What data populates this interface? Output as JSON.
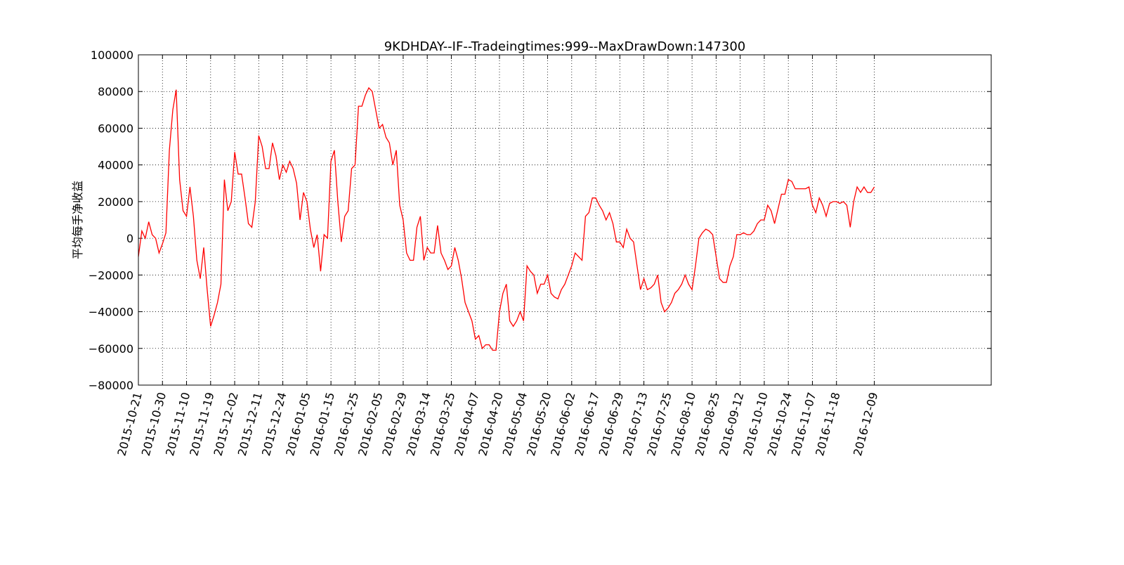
{
  "chart_data": {
    "type": "line",
    "title": "9KDHDAY--IF--Tradeingtimes:999--MaxDrawDown:147300",
    "ylabel": "平均每手净收益",
    "color": "#ff0000",
    "grid": true,
    "xlim": [
      0,
      248
    ],
    "ylim": [
      -80000,
      100000
    ],
    "yticks": [
      {
        "value": -80000,
        "label": "−80000"
      },
      {
        "value": -60000,
        "label": "−60000"
      },
      {
        "value": -40000,
        "label": "−40000"
      },
      {
        "value": -20000,
        "label": "−20000"
      },
      0,
      20000,
      40000,
      60000,
      80000,
      100000
    ],
    "xticks": [
      {
        "value": 0,
        "label": "2015-10-21"
      },
      {
        "value": 7,
        "label": "2015-10-30"
      },
      {
        "value": 14,
        "label": "2015-11-10"
      },
      {
        "value": 21,
        "label": "2015-11-19"
      },
      {
        "value": 28,
        "label": "2015-12-02"
      },
      {
        "value": 35,
        "label": "2015-12-11"
      },
      {
        "value": 42,
        "label": "2015-12-24"
      },
      {
        "value": 49,
        "label": "2016-01-05"
      },
      {
        "value": 56,
        "label": "2016-01-15"
      },
      {
        "value": 63,
        "label": "2016-01-25"
      },
      {
        "value": 70,
        "label": "2016-02-05"
      },
      {
        "value": 77,
        "label": "2016-02-29"
      },
      {
        "value": 84,
        "label": "2016-03-14"
      },
      {
        "value": 91,
        "label": "2016-03-25"
      },
      {
        "value": 98,
        "label": "2016-04-07"
      },
      {
        "value": 105,
        "label": "2016-04-20"
      },
      {
        "value": 112,
        "label": "2016-05-04"
      },
      {
        "value": 119,
        "label": "2016-05-20"
      },
      {
        "value": 126,
        "label": "2016-06-02"
      },
      {
        "value": 133,
        "label": "2016-06-17"
      },
      {
        "value": 140,
        "label": "2016-06-29"
      },
      {
        "value": 147,
        "label": "2016-07-13"
      },
      {
        "value": 154,
        "label": "2016-07-25"
      },
      {
        "value": 161,
        "label": "2016-08-10"
      },
      {
        "value": 168,
        "label": "2016-08-25"
      },
      {
        "value": 175,
        "label": "2016-09-12"
      },
      {
        "value": 182,
        "label": "2016-10-10"
      },
      {
        "value": 189,
        "label": "2016-10-24"
      },
      {
        "value": 196,
        "label": "2016-11-07"
      },
      {
        "value": 203,
        "label": "2016-11-18"
      },
      {
        "value": 214,
        "label": "2016-12-09"
      }
    ],
    "x": [
      0,
      1,
      2,
      3,
      4,
      5,
      6,
      7,
      8,
      9,
      10,
      11,
      12,
      13,
      14,
      15,
      16,
      17,
      18,
      19,
      20,
      21,
      22,
      23,
      24,
      25,
      26,
      27,
      28,
      29,
      30,
      31,
      32,
      33,
      34,
      35,
      36,
      37,
      38,
      39,
      40,
      41,
      42,
      43,
      44,
      45,
      46,
      47,
      48,
      49,
      50,
      51,
      52,
      53,
      54,
      55,
      56,
      57,
      58,
      59,
      60,
      61,
      62,
      63,
      64,
      65,
      66,
      67,
      68,
      69,
      70,
      71,
      72,
      73,
      74,
      75,
      76,
      77,
      78,
      79,
      80,
      81,
      82,
      83,
      84,
      85,
      86,
      87,
      88,
      89,
      90,
      91,
      92,
      93,
      94,
      95,
      96,
      97,
      98,
      99,
      100,
      101,
      102,
      103,
      104,
      105,
      106,
      107,
      108,
      109,
      110,
      111,
      112,
      113,
      114,
      115,
      116,
      117,
      118,
      119,
      120,
      121,
      122,
      123,
      124,
      125,
      126,
      127,
      128,
      129,
      130,
      131,
      132,
      133,
      134,
      135,
      136,
      137,
      138,
      139,
      140,
      141,
      142,
      143,
      144,
      145,
      146,
      147,
      148,
      149,
      150,
      151,
      152,
      153,
      154,
      155,
      156,
      157,
      158,
      159,
      160,
      161,
      162,
      163,
      164,
      165,
      166,
      167,
      168,
      169,
      170,
      171,
      172,
      173,
      174,
      175,
      176,
      177,
      178,
      179,
      180,
      181,
      182,
      183,
      184,
      185,
      186,
      187,
      188,
      189,
      190,
      191,
      192,
      193,
      194,
      195,
      196,
      197,
      198,
      199,
      200,
      201,
      202,
      203,
      204,
      205,
      206,
      207,
      208,
      209,
      210,
      211,
      212,
      213,
      214
    ],
    "values": [
      -10000,
      4000,
      0,
      9000,
      2000,
      0,
      -8000,
      -3000,
      3000,
      48000,
      70000,
      81000,
      32000,
      15000,
      12000,
      28000,
      12000,
      -12000,
      -22000,
      -5000,
      -28000,
      -48000,
      -42000,
      -35000,
      -25000,
      32000,
      15000,
      20000,
      47000,
      35000,
      35000,
      22000,
      8000,
      6000,
      20000,
      56000,
      50000,
      38000,
      38000,
      52000,
      45000,
      32000,
      40000,
      36000,
      42000,
      38000,
      30000,
      10000,
      25000,
      20000,
      5000,
      -5000,
      2000,
      -18000,
      2000,
      0,
      42000,
      48000,
      20000,
      -2000,
      12000,
      15000,
      38000,
      40000,
      72000,
      72000,
      78000,
      82000,
      80000,
      70000,
      60000,
      62000,
      55000,
      52000,
      40000,
      48000,
      18000,
      10000,
      -8000,
      -12000,
      -12000,
      6000,
      12000,
      -12000,
      -5000,
      -8000,
      -8000,
      7000,
      -8000,
      -12000,
      -17000,
      -15000,
      -5000,
      -12000,
      -22000,
      -35000,
      -40000,
      -45000,
      -55000,
      -53000,
      -60000,
      -58000,
      -58000,
      -61000,
      -61000,
      -40000,
      -30000,
      -25000,
      -45000,
      -48000,
      -45000,
      -40000,
      -45000,
      -15000,
      -18000,
      -20000,
      -30000,
      -25000,
      -25000,
      -20000,
      -30000,
      -32000,
      -33000,
      -28000,
      -25000,
      -20000,
      -15000,
      -8000,
      -10000,
      -12000,
      12000,
      14000,
      22000,
      22000,
      18000,
      15000,
      10000,
      14000,
      8000,
      -2000,
      -2000,
      -5000,
      5000,
      0,
      -2000,
      -15000,
      -28000,
      -22000,
      -28000,
      -27000,
      -25000,
      -20000,
      -35000,
      -40000,
      -38000,
      -35000,
      -30000,
      -28000,
      -25000,
      -20000,
      -25000,
      -28000,
      -15000,
      0,
      3000,
      5000,
      4000,
      2000,
      -10000,
      -22000,
      -24000,
      -24000,
      -15000,
      -10000,
      2000,
      2000,
      3000,
      2000,
      2000,
      4000,
      8000,
      10000,
      10000,
      18000,
      15000,
      8000,
      16000,
      24000,
      24000,
      32000,
      31000,
      27000,
      27000,
      27000,
      27000,
      28000,
      18000,
      14000,
      22000,
      18000,
      12000,
      19000,
      20000,
      20000,
      19000,
      20000,
      18000,
      6000,
      20000,
      28000,
      25000,
      28000,
      25000,
      25000,
      28000
    ]
  }
}
